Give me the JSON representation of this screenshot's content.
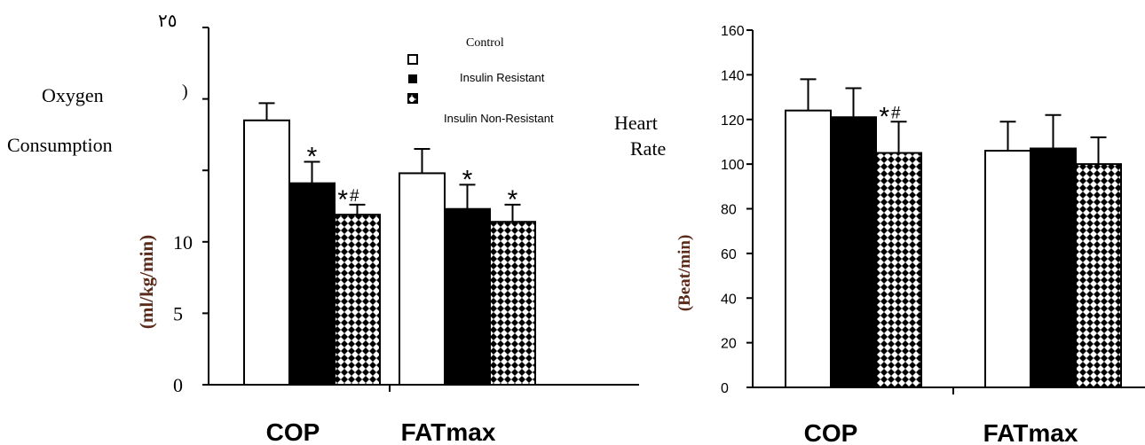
{
  "colors": {
    "control": "#ffffff",
    "insulin_resistant": "#000000",
    "pattern": "#000000",
    "ylabel": "#5a2a1a",
    "axis": "#000000"
  },
  "legend": {
    "entries": [
      {
        "label": "Control",
        "icon": "open-square-icon"
      },
      {
        "label": "Insulin Resistant",
        "icon": "filled-square-icon"
      },
      {
        "label": "Insulin Non-Resistant",
        "icon": "checkered-square-icon"
      }
    ]
  },
  "chart_data": [
    {
      "type": "bar",
      "title_lines": [
        "Oxygen",
        "Consumption"
      ],
      "paren_mark": ")",
      "ylabel": "(ml/kg/min)",
      "top_tick_label": "٢٥",
      "yticks": [
        "0",
        "5",
        "10"
      ],
      "categories": [
        "COP",
        "FATmax"
      ],
      "ylim": [
        0,
        25
      ],
      "series": [
        {
          "name": "Control",
          "values": [
            18.5,
            14.8
          ],
          "errors": [
            1.2,
            1.7
          ]
        },
        {
          "name": "Insulin Resistant",
          "values": [
            14.1,
            12.3
          ],
          "errors": [
            1.5,
            1.7
          ]
        },
        {
          "name": "Insulin Non-Resistant",
          "values": [
            11.9,
            11.4
          ],
          "errors": [
            0.7,
            1.2
          ]
        }
      ],
      "annotations": [
        {
          "category": 0,
          "series": 1,
          "text": "*"
        },
        {
          "category": 0,
          "series": 2,
          "text": "*#"
        },
        {
          "category": 1,
          "series": 1,
          "text": "*"
        },
        {
          "category": 1,
          "series": 2,
          "text": "*"
        }
      ]
    },
    {
      "type": "bar",
      "title_lines": [
        "Heart",
        "Rate"
      ],
      "ylabel": "(Beat/min)",
      "yticks": [
        "0",
        "20",
        "40",
        "60",
        "80",
        "100",
        "120",
        "140",
        "160"
      ],
      "categories": [
        "COP",
        "FATmax"
      ],
      "ylim": [
        0,
        160
      ],
      "series": [
        {
          "name": "Control",
          "values": [
            124,
            106
          ],
          "errors": [
            14,
            13
          ]
        },
        {
          "name": "Insulin Resistant",
          "values": [
            121,
            107
          ],
          "errors": [
            13,
            15
          ]
        },
        {
          "name": "Insulin Non-Resistant",
          "values": [
            105,
            100
          ],
          "errors": [
            14,
            12
          ]
        }
      ],
      "annotations": [
        {
          "category": 0,
          "series": 2,
          "text": "*#"
        }
      ]
    }
  ]
}
